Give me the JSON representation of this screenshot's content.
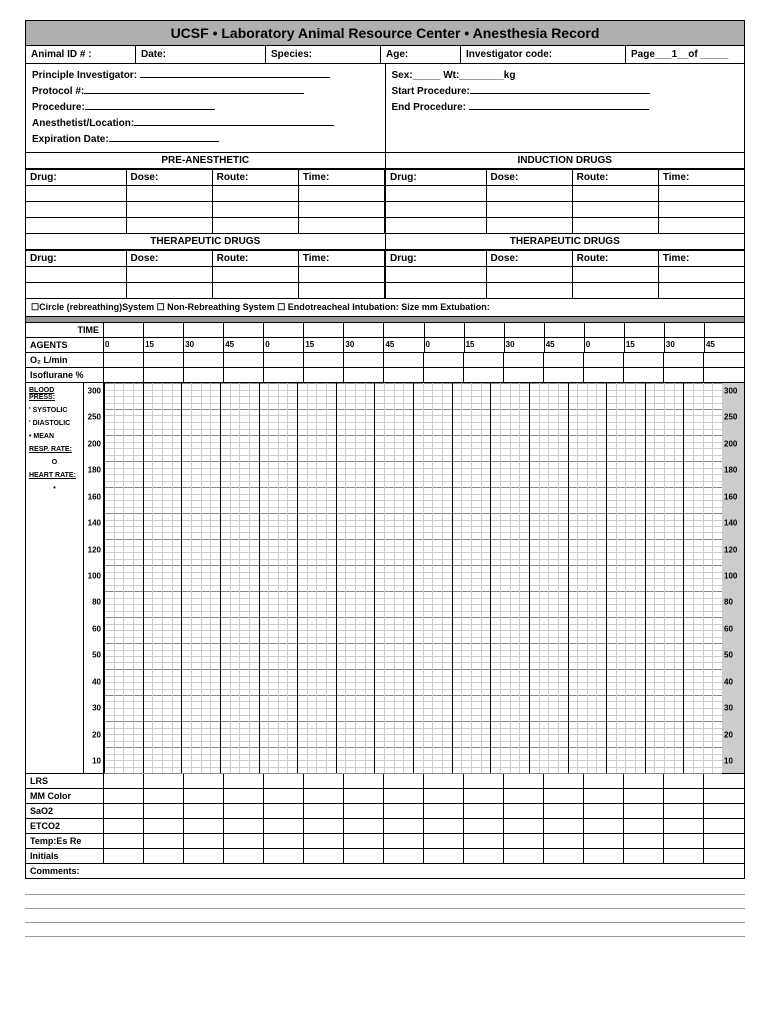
{
  "title": "UCSF • Laboratory Animal Resource Center • Anesthesia Record",
  "header": {
    "animal_id": "Animal ID # :",
    "date": "Date:",
    "species": "Species:",
    "age": "Age:",
    "investigator_code": "Investigator code:",
    "page": "Page___1__of _____"
  },
  "left_fields": {
    "pi": "Principle Investigator:",
    "protocol": "Protocol #:",
    "procedure": "Procedure:",
    "anesth_loc": "Anesthetist/Location:",
    "exp_date": "Expiration Date:"
  },
  "right_fields": {
    "sex_wt": "Sex:_____ Wt:________kg",
    "start": "Start Procedure:",
    "end": "End Procedure:"
  },
  "sections": {
    "pre_anesthetic": "PRE-ANESTHETIC",
    "induction": "INDUCTION DRUGS",
    "therapeutic1": "THERAPEUTIC DRUGS",
    "therapeutic2": "THERAPEUTIC DRUGS"
  },
  "drug_cols": {
    "drug": "Drug:",
    "dose": "Dose:",
    "route": "Route:",
    "time": "Time:"
  },
  "system_row": "☐Circle (rebreathing)System  ☐   Non-Rebreathing System  ☐   Endotreacheal Intubation:          Size               mm      Extubation:",
  "time_label": "TIME",
  "agents_label": "AGENTS",
  "time_ticks": [
    "0",
    "15",
    "30",
    "45",
    "0",
    "15",
    "30",
    "45",
    "0",
    "15",
    "30",
    "45",
    "0",
    "15",
    "30",
    "45"
  ],
  "o2": "O₂ L/min",
  "iso": "Isoflurane  %",
  "chart": {
    "bp": "BLOOD PRESS:",
    "systolic": "' SYSTOLIC",
    "diastolic": "' DIASTOLIC",
    "mean": "• MEAN",
    "resp": "RESP. RATE:",
    "resp_sym": "O",
    "hr": "HEART RATE:",
    "hr_sym": "•",
    "y_values": [
      300,
      250,
      200,
      180,
      160,
      140,
      120,
      100,
      80,
      60,
      50,
      40,
      30,
      20,
      10
    ]
  },
  "bottom": {
    "lrs": "LRS",
    "mm": "MM Color",
    "sao2": "SaO2",
    "etco2": "ETCO2",
    "temp": "Temp:Es Re",
    "initials": "Initials",
    "comments": "Comments:"
  },
  "style": {
    "title_bg": "#b0b0b0",
    "gray_bar": "#999999",
    "right_axis_bg": "#cccccc",
    "grid_minor": "#cccccc",
    "grid_major": "#000000"
  }
}
